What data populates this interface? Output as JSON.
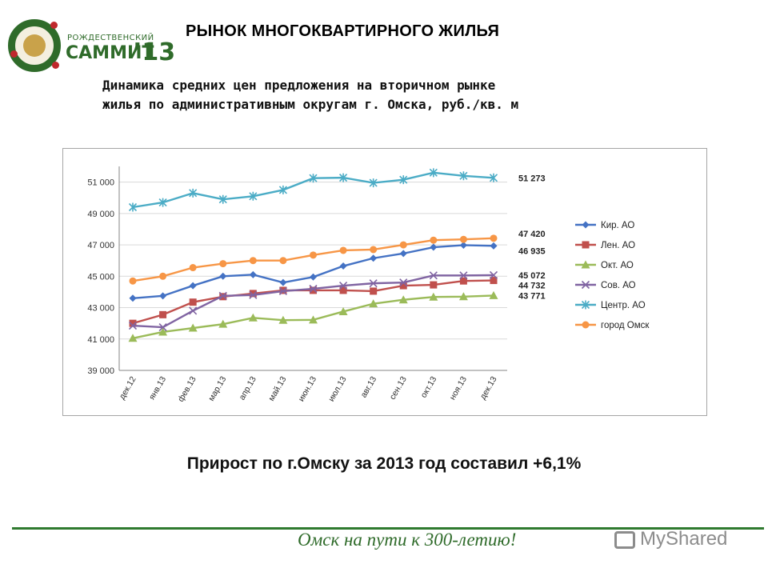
{
  "header": {
    "logo_small": "РОЖДЕСТВЕНСКИЙ",
    "logo_big": "САММИТ",
    "logo_year": "’13",
    "title": "РЫНОК МНОГОКВАРТИРНОГО ЖИЛЬЯ",
    "subtitle_line1": "Динамика средних цен предложения на вторичном рынке",
    "subtitle_line2": "жилья по административным округам г. Омска, руб./кв. м"
  },
  "chart_data": {
    "type": "line",
    "categories": [
      "дек.12",
      "янв.13",
      "фев.13",
      "мар.13",
      "апр.13",
      "май.13",
      "июн.13",
      "июл.13",
      "авг.13",
      "сен.13",
      "окт.13",
      "ноя.13",
      "дек.13"
    ],
    "ylim": [
      39000,
      52000
    ],
    "yticks": [
      39000,
      41000,
      43000,
      45000,
      47000,
      49000,
      51000
    ],
    "ytick_labels": [
      "39 000",
      "41 000",
      "43 000",
      "45 000",
      "47 000",
      "49 000",
      "51 000"
    ],
    "grid": true,
    "legend_position": "right",
    "series": [
      {
        "name": "Кир. АО",
        "color": "#4472c4",
        "marker": "diamond",
        "values": [
          43600,
          43750,
          44400,
          45000,
          45100,
          44600,
          44950,
          45650,
          46150,
          46450,
          46850,
          46980,
          46935
        ]
      },
      {
        "name": "Лен. АО",
        "color": "#c0504d",
        "marker": "square",
        "values": [
          42000,
          42550,
          43350,
          43700,
          43900,
          44100,
          44100,
          44100,
          44050,
          44400,
          44450,
          44700,
          44732
        ]
      },
      {
        "name": "Окт. АО",
        "color": "#9bbb59",
        "marker": "triangle",
        "values": [
          41050,
          41450,
          41700,
          41950,
          42350,
          42200,
          42220,
          42750,
          43250,
          43500,
          43680,
          43700,
          43771
        ]
      },
      {
        "name": "Сов. АО",
        "color": "#8064a2",
        "marker": "x",
        "values": [
          41850,
          41750,
          42800,
          43750,
          43800,
          44050,
          44200,
          44400,
          44550,
          44600,
          45050,
          45050,
          45072
        ]
      },
      {
        "name": "Центр. АО",
        "color": "#4bacc6",
        "marker": "star",
        "values": [
          49400,
          49700,
          50300,
          49900,
          50100,
          50500,
          51250,
          51280,
          50950,
          51150,
          51600,
          51400,
          51273
        ]
      },
      {
        "name": "город Омск",
        "color": "#f79646",
        "marker": "circle",
        "values": [
          44700,
          45000,
          45550,
          45800,
          46000,
          46000,
          46350,
          46650,
          46700,
          47000,
          47300,
          47350,
          47420
        ]
      }
    ],
    "end_labels": [
      "51 273",
      "47 420",
      "46 935",
      "45 072",
      "44 732",
      "43 771"
    ]
  },
  "footnote": "Прирост по г.Омску за 2013 год составил +6,1%",
  "slogan": "Омск на пути к 300-летию!",
  "watermark": "MyShared"
}
